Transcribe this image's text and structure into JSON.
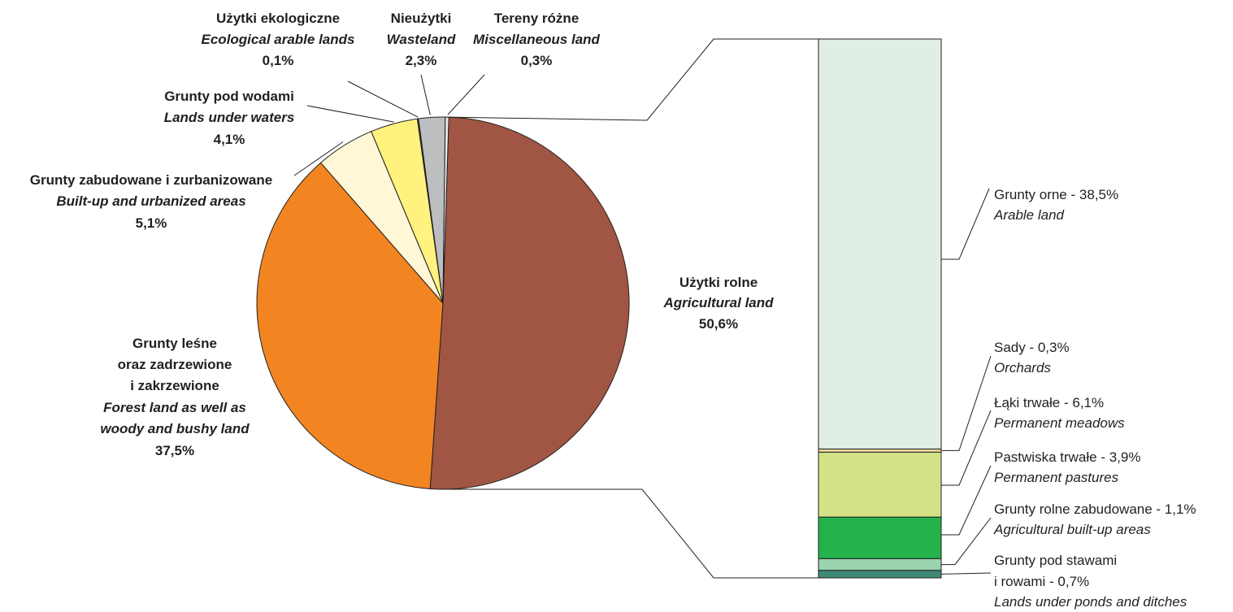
{
  "chart_data": [
    {
      "type": "pie",
      "slices": [
        {
          "key": "agricultural",
          "pl": "Użytki rolne",
          "en": "Agricultural land",
          "value": 50.6,
          "value_label": "50,6%",
          "color": "#a15543"
        },
        {
          "key": "forest",
          "pl_lines": [
            "Grunty leśne",
            "oraz zadrzewione",
            "i zakrzewione"
          ],
          "en_lines": [
            "Forest land as well as",
            "woody and bushy land"
          ],
          "value": 37.5,
          "value_label": "37,5%",
          "color": "#f28521"
        },
        {
          "key": "builtup",
          "pl": "Grunty zabudowane  i zurbanizowane",
          "en": "Built-up and urbanized areas",
          "value": 5.1,
          "value_label": "5,1%",
          "color": "#fff7d6"
        },
        {
          "key": "waters",
          "pl": "Grunty pod wodami",
          "en": "Lands under waters",
          "value": 4.1,
          "value_label": "4,1%",
          "color": "#fff27f"
        },
        {
          "key": "ecological",
          "pl": "Użytki ekologiczne",
          "en": "Ecological arable lands",
          "value": 0.1,
          "value_label": "0,1%",
          "color": "#4d4d4d"
        },
        {
          "key": "wasteland",
          "pl": "Nieużytki",
          "en": "Wasteland",
          "value": 2.3,
          "value_label": "2,3%",
          "color": "#bcbec0"
        },
        {
          "key": "misc",
          "pl": "Tereny różne",
          "en": "Miscellaneous land",
          "value": 0.3,
          "value_label": "0,3%",
          "color": "#e6e7e8"
        }
      ]
    },
    {
      "type": "bar",
      "stacked": true,
      "segments": [
        {
          "key": "arable",
          "pl": "Grunty orne - 38,5%",
          "en": "Arable land",
          "value": 38.5,
          "color": "#e0efe3"
        },
        {
          "key": "orchards",
          "pl": "Sady - 0,3%",
          "en": "Orchards",
          "value": 0.3,
          "color": "#e8d79a"
        },
        {
          "key": "meadows",
          "pl": "Łąki trwałe - 6,1%",
          "en": "Permanent meadows",
          "value": 6.1,
          "color": "#d4e287"
        },
        {
          "key": "pastures",
          "pl": "Pastwiska trwałe - 3,9%",
          "en": "Permanent pastures",
          "value": 3.9,
          "color": "#23b24b"
        },
        {
          "key": "agri_builtup",
          "pl": "Grunty rolne zabudowane - 1,1%",
          "en": "Agricultural built-up areas",
          "value": 1.1,
          "color": "#9bd3ae"
        },
        {
          "key": "ponds",
          "pl_lines": [
            "Grunty pod stawami",
            "i rowami  - 0,7%"
          ],
          "en": "Lands under ponds and ditches",
          "value": 0.7,
          "color": "#3f8a76"
        }
      ]
    }
  ]
}
